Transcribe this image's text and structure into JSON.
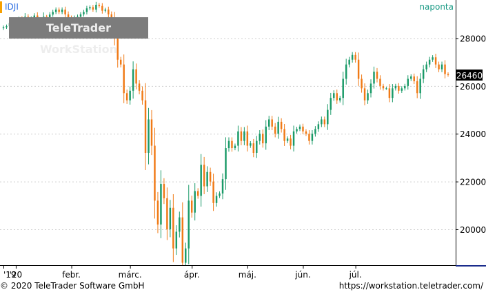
{
  "header": {
    "symbol": "IDJI",
    "period": "naponta",
    "watermark": "TeleTrader WorkStation"
  },
  "footer": {
    "copyright": "© 2020 TeleTrader Software GmbH",
    "url": "https://workstation.teletrader.com/"
  },
  "chart_data": {
    "type": "candlestick",
    "title": "IDJI",
    "ylim": [
      18500,
      29600
    ],
    "y_ticks": [
      20000,
      22000,
      24000,
      26000,
      28000
    ],
    "y_tick_labels": [
      "20000",
      "22000",
      "24000",
      "26000",
      "28000"
    ],
    "x_labels": [
      "'19",
      "'20",
      "febr.",
      "márc.",
      "ápr.",
      "máj.",
      "jún.",
      "júl."
    ],
    "x_label_positions": [
      0,
      4,
      22,
      41,
      61,
      79,
      97,
      114
    ],
    "last_value": "26460",
    "grid": true,
    "colors": {
      "up": "#1a9a68",
      "down": "#f07a16",
      "grid": "#cfcfcf",
      "axis": "#000000",
      "last_box": "#000000"
    },
    "series": [
      {
        "name": "IDJI",
        "close": [
          28460,
          28500,
          28640,
          28700,
          28650,
          28800,
          28600,
          28900,
          28750,
          28830,
          28950,
          28700,
          28500,
          28900,
          28850,
          28990,
          29100,
          29200,
          29100,
          29200,
          29000,
          28800,
          28500,
          28800,
          28900,
          29000,
          29100,
          29250,
          29300,
          29200,
          29400,
          29350,
          29150,
          29200,
          29000,
          28800,
          28000,
          27100,
          26900,
          25700,
          25400,
          25800,
          26700,
          26100,
          25800,
          25400,
          23200,
          24600,
          23500,
          21200,
          20200,
          21900,
          21300,
          20000,
          20900,
          19200,
          19900,
          20500,
          18600,
          19200,
          21200,
          20700,
          21600,
          21400,
          22700,
          21800,
          22400,
          22000,
          21100,
          21400,
          21500,
          22100,
          23400,
          23700,
          23400,
          23500,
          24100,
          23700,
          24100,
          23500,
          23600,
          23200,
          23700,
          24000,
          23600,
          24300,
          24600,
          24300,
          24000,
          24500,
          24200,
          23700,
          23800,
          23500,
          24100,
          24200,
          24300,
          24100,
          24000,
          23700,
          24000,
          24200,
          24400,
          24600,
          24400,
          25000,
          25500,
          25700,
          25400,
          25500,
          26300,
          26900,
          27100,
          27300,
          27100,
          26300,
          25900,
          25400,
          25700,
          26100,
          26600,
          26300,
          26000,
          25900,
          25900,
          25500,
          25900,
          26000,
          25800,
          25900,
          26000,
          26300,
          26400,
          26200,
          25700,
          26300,
          26700,
          26900,
          27100,
          27200,
          26900,
          26700,
          26900,
          26500,
          26460
        ]
      }
    ]
  }
}
